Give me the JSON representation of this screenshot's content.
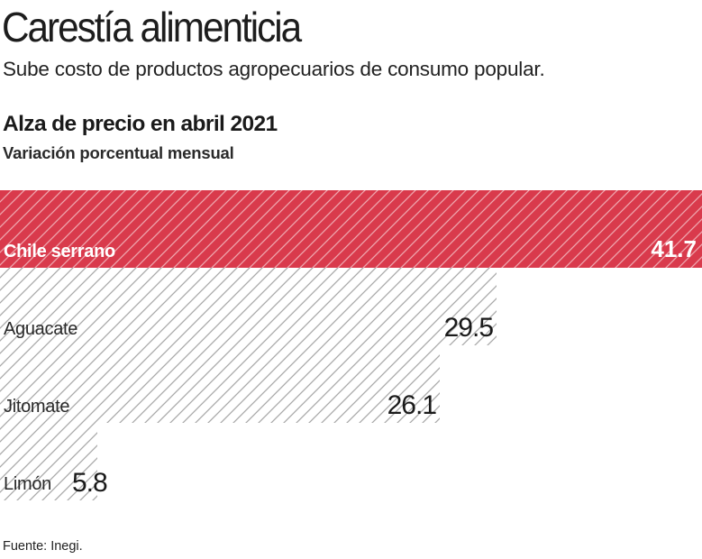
{
  "header": {
    "title": "Carestía alimenticia",
    "subtitle": "Sube costo de productos agropecuarios de consumo popular."
  },
  "footer": {
    "source": "Fuente: Inegi."
  },
  "colors": {
    "highlight": "#d93a4c",
    "hatch_light": "#bdbdbd",
    "text": "#1a1a1a"
  },
  "chart_data": {
    "type": "bar",
    "orientation": "horizontal",
    "title": "Alza de precio en abril 2021",
    "subtitle": "Variación porcentual mensual",
    "categories": [
      "Chile serrano",
      "Aguacate",
      "Jitomate",
      "Limón"
    ],
    "values": [
      41.7,
      29.5,
      26.1,
      5.8
    ],
    "value_labels": [
      "41.7",
      "29.5",
      "26.1",
      "5.8"
    ],
    "highlighted": [
      true,
      false,
      false,
      false
    ],
    "xlim": [
      0,
      41.7
    ],
    "grid": false,
    "legend": false
  }
}
